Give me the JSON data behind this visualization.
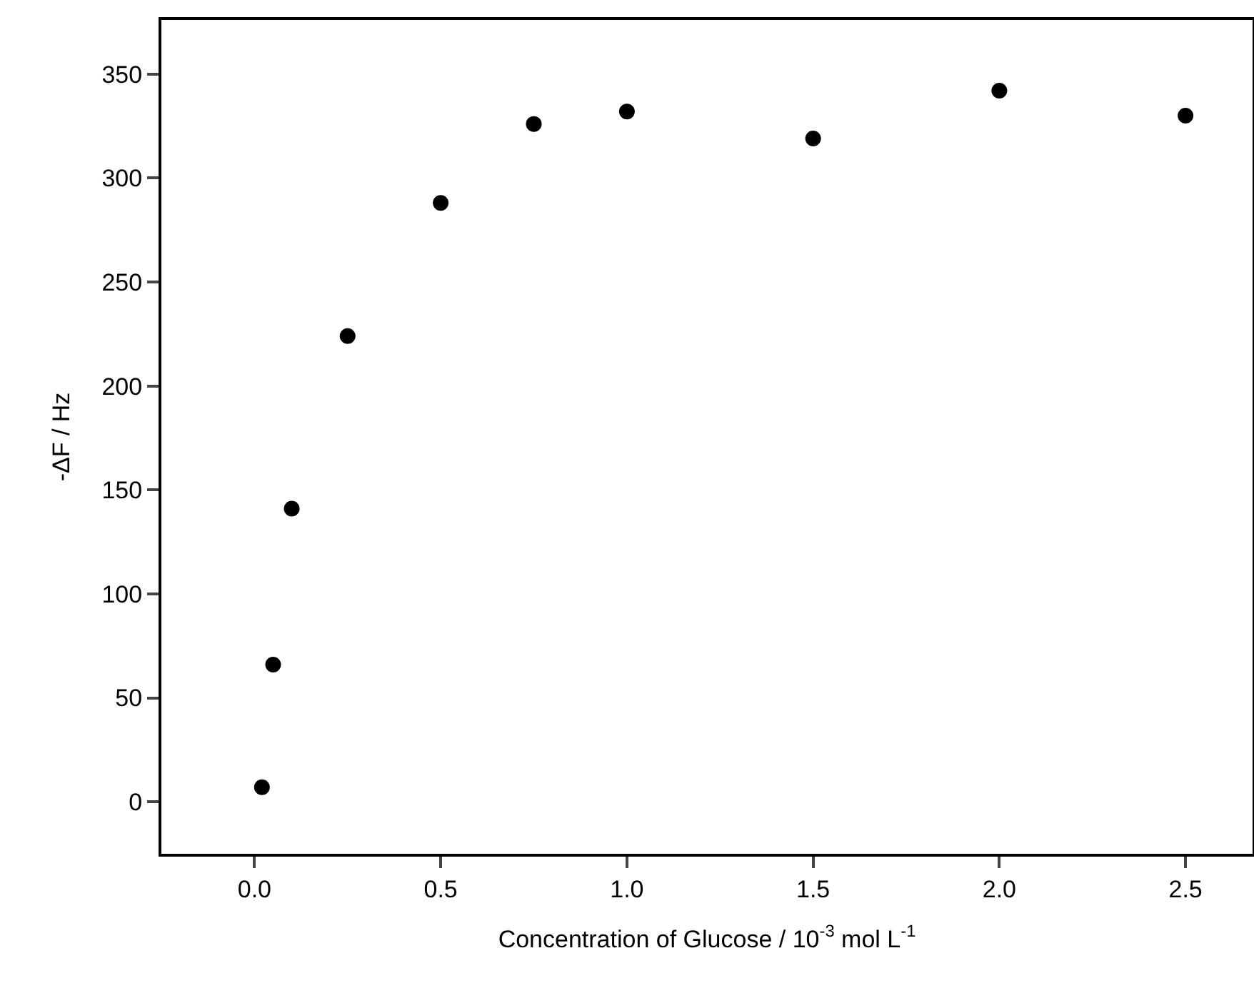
{
  "chart_data": {
    "type": "scatter",
    "xlabel": "Concentration of Glucose / 10$^{-3}$ mol L$^{-1}$",
    "ylabel": "-ΔF / Hz",
    "x": [
      0.02,
      0.05,
      0.1,
      0.25,
      0.5,
      0.75,
      1.0,
      1.5,
      2.0,
      2.5
    ],
    "series": [
      {
        "color": "#000000",
        "values": [
          7,
          66,
          141,
          224,
          288,
          326,
          332,
          319,
          342,
          330
        ]
      }
    ],
    "xlim": [
      -0.25,
      2.68
    ],
    "xticks": [
      {
        "value": 0,
        "label": "0.0"
      },
      0.5,
      {
        "value": 1,
        "label": "1.0"
      },
      1.5,
      {
        "value": 2,
        "label": "2.0"
      },
      2.5
    ],
    "ylim": [
      -25,
      376
    ],
    "yticks": [
      0,
      50,
      100,
      150,
      200,
      250,
      300,
      350
    ],
    "grid": false,
    "legend": false,
    "marker": "circle"
  }
}
